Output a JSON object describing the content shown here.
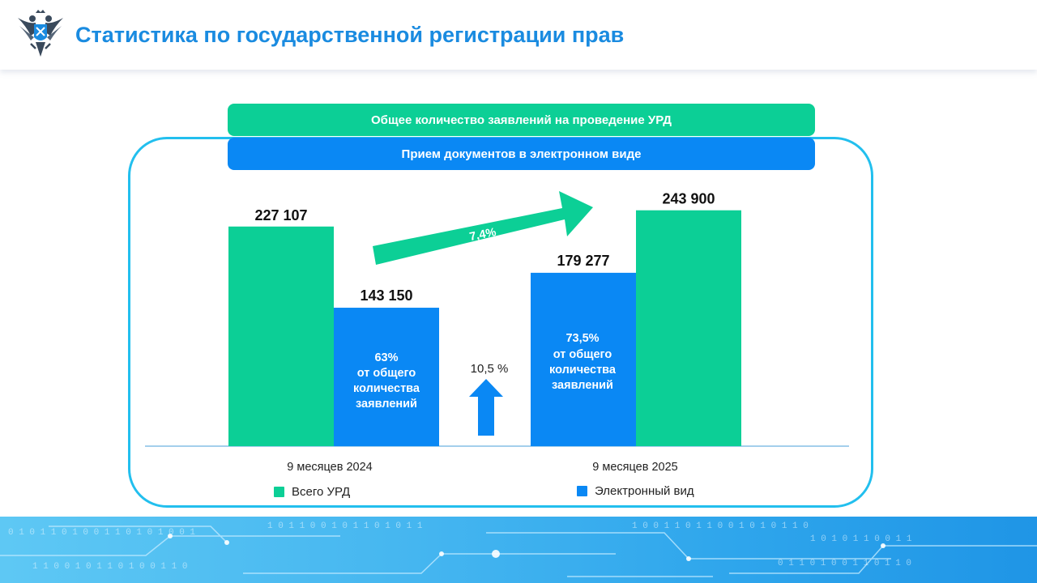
{
  "header": {
    "title": "Статистика по государственной регистрации прав"
  },
  "labels": {
    "total_label": "Общее количество заявлений на проведение УРД",
    "electronic_label": "Прием документов в электронном виде"
  },
  "colors": {
    "green": "#0ccf96",
    "blue": "#0a88f4",
    "frame": "#22bfee",
    "title": "#1a8be0"
  },
  "chart_data": {
    "type": "bar",
    "categories": [
      "9 месяцев 2024",
      "9 месяцев 2025"
    ],
    "series": [
      {
        "name": "Всего УРД",
        "values": [
          227107,
          243900
        ],
        "labels": [
          "227 107",
          "243 900"
        ]
      },
      {
        "name": "Электронный вид",
        "values": [
          143150,
          179277
        ],
        "labels": [
          "143 150",
          "179 277"
        ]
      }
    ],
    "share_labels": [
      [
        "63%",
        "от общего",
        "количества",
        "заявлений"
      ],
      [
        "73,5%",
        "от общего",
        "количества",
        "заявлений"
      ]
    ],
    "annotations": {
      "growth_total": "7,4%",
      "growth_electronic": "10,5 %"
    },
    "legend": [
      "Всего УРД",
      "Электронный вид"
    ],
    "ylim": [
      0,
      300000
    ],
    "grid": false
  }
}
